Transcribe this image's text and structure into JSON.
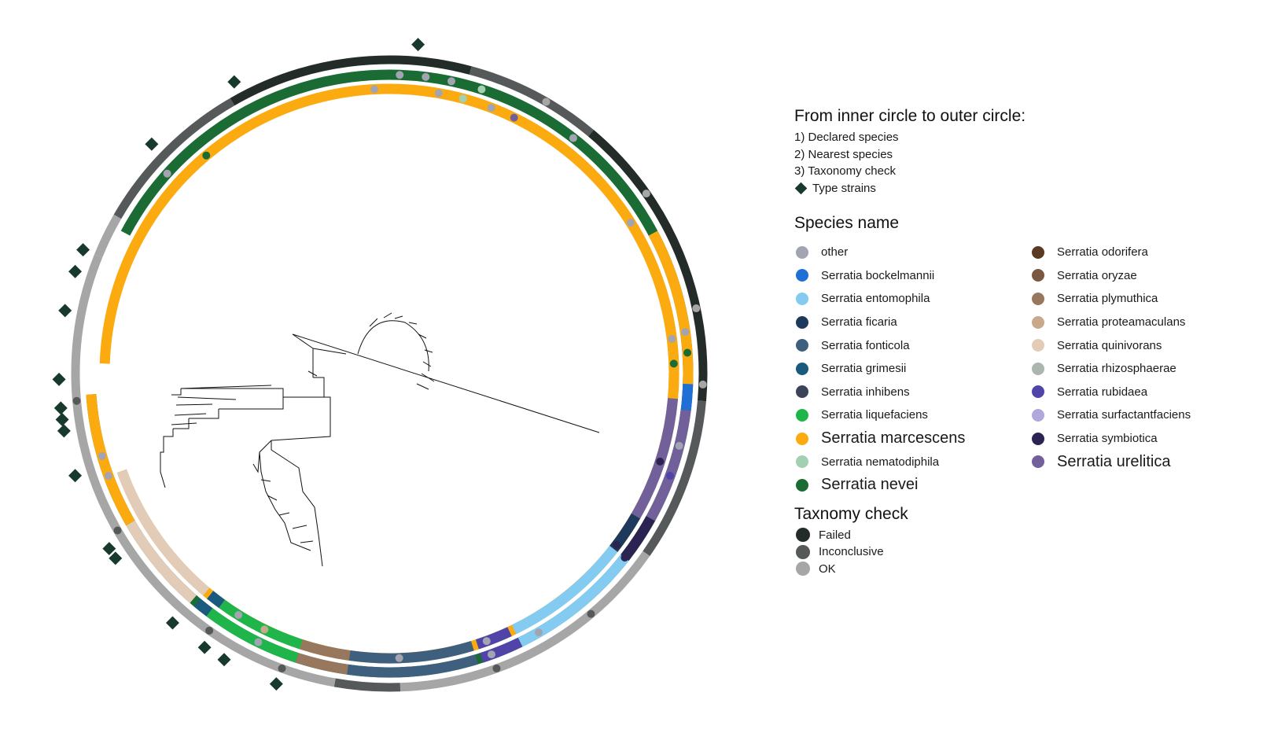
{
  "legend": {
    "ring_order_title": "From inner circle to outer circle:",
    "ring_order": [
      "1) Declared species",
      "2) Nearest species",
      "3) Taxonomy check"
    ],
    "type_strains_label": "Type strains",
    "species_title": "Species name",
    "species": [
      {
        "name": "other",
        "color": "#a3a4b2",
        "large": false
      },
      {
        "name": "Serratia bockelmannii",
        "color": "#1f6fd6",
        "large": false
      },
      {
        "name": "Serratia entomophila",
        "color": "#84cbf2",
        "large": false
      },
      {
        "name": "Serratia ficaria",
        "color": "#1d3a5c",
        "large": false
      },
      {
        "name": "Serratia fonticola",
        "color": "#3f5f7f",
        "large": false
      },
      {
        "name": "Serratia grimesii",
        "color": "#1a5a7e",
        "large": false
      },
      {
        "name": "Serratia inhibens",
        "color": "#3b4358",
        "large": false
      },
      {
        "name": "Serratia liquefaciens",
        "color": "#1fb54a",
        "large": false
      },
      {
        "name": "Serratia marcescens",
        "color": "#fbaa10",
        "large": true
      },
      {
        "name": "Serratia nematodiphila",
        "color": "#a3d0b3",
        "large": false
      },
      {
        "name": "Serratia nevei",
        "color": "#1b6b34",
        "large": true
      },
      {
        "name": "Serratia odorifera",
        "color": "#5a3a22",
        "large": false
      },
      {
        "name": "Serratia oryzae",
        "color": "#7a5842",
        "large": false
      },
      {
        "name": "Serratia plymuthica",
        "color": "#98775f",
        "large": false
      },
      {
        "name": "Serratia proteamaculans",
        "color": "#c9a98c",
        "large": false
      },
      {
        "name": "Serratia quinivorans",
        "color": "#e2ccb8",
        "large": false
      },
      {
        "name": "Serratia rhizosphaerae",
        "color": "#aab6ae",
        "large": false
      },
      {
        "name": "Serratia rubidaea",
        "color": "#5144a8",
        "large": false
      },
      {
        "name": "Serratia surfactantfaciens",
        "color": "#b0a8da",
        "large": false
      },
      {
        "name": "Serratia symbiotica",
        "color": "#2b2452",
        "large": false
      },
      {
        "name": "Serratia urelitica",
        "color": "#72609a",
        "large": true
      }
    ],
    "taxonomy_title": "Taxnomy check",
    "taxonomy": [
      {
        "name": "Failed",
        "color": "#232c28"
      },
      {
        "name": "Inconclusive",
        "color": "#55595a"
      },
      {
        "name": "OK",
        "color": "#a6a6a6"
      }
    ]
  },
  "rings": {
    "declared": [
      {
        "species": "Serratia marcescens",
        "start": -88,
        "end": 250
      },
      {
        "species": "Serratia quinivorans",
        "start": 250,
        "end": 220
      },
      {
        "species": "Serratia grimesii",
        "start": 219,
        "end": 216
      },
      {
        "species": "Serratia liquefaciens",
        "start": 216,
        "end": 198
      },
      {
        "species": "Serratia plymuthica",
        "start": 198,
        "end": 188
      },
      {
        "species": "Serratia fonticola",
        "start": 188,
        "end": 163
      },
      {
        "species": "Serratia rubidaea",
        "start": 162,
        "end": 155
      },
      {
        "species": "Serratia entomophila",
        "start": 154,
        "end": 128
      },
      {
        "species": "Serratia ficaria",
        "start": 128,
        "end": 120
      },
      {
        "species": "Serratia urelitica",
        "start": 120,
        "end": 95
      },
      {
        "species": "Serratia marcescens",
        "start": 95,
        "end": 72
      }
    ],
    "nearest": [
      {
        "species": "Serratia nevei",
        "start": -62,
        "end": 266
      },
      {
        "species": "Serratia marcescens",
        "start": 266,
        "end": 240
      },
      {
        "species": "Serratia quinivorans",
        "start": 240,
        "end": 221
      },
      {
        "species": "Serratia grimesii",
        "start": 220,
        "end": 217
      },
      {
        "species": "Serratia liquefaciens",
        "start": 217,
        "end": 198
      },
      {
        "species": "Serratia plymuthica",
        "start": 198,
        "end": 188
      },
      {
        "species": "Serratia fonticola",
        "start": 188,
        "end": 163
      },
      {
        "species": "Serratia rubidaea",
        "start": 162,
        "end": 154
      },
      {
        "species": "Serratia entomophila",
        "start": 154,
        "end": 128
      },
      {
        "species": "Serratia symbiotica",
        "start": 128,
        "end": 119
      },
      {
        "species": "Serratia urelitica",
        "start": 119,
        "end": 97
      },
      {
        "species": "Serratia bockelmannii",
        "start": 97,
        "end": 92
      },
      {
        "species": "Serratia marcescens",
        "start": 92,
        "end": 62
      }
    ],
    "taxonomy": [
      {
        "status": "OK",
        "start": -68,
        "end": -60
      },
      {
        "status": "Inconclusive",
        "start": -60,
        "end": -30
      },
      {
        "status": "Failed",
        "start": -30,
        "end": 15
      },
      {
        "status": "Inconclusive",
        "start": 15,
        "end": 40
      },
      {
        "status": "Failed",
        "start": 40,
        "end": 95
      },
      {
        "status": "Inconclusive",
        "start": 95,
        "end": 125
      },
      {
        "status": "OK",
        "start": 125,
        "end": 178
      },
      {
        "status": "Inconclusive",
        "start": 178,
        "end": 190
      },
      {
        "status": "OK",
        "start": 190,
        "end": 292
      }
    ]
  }
}
